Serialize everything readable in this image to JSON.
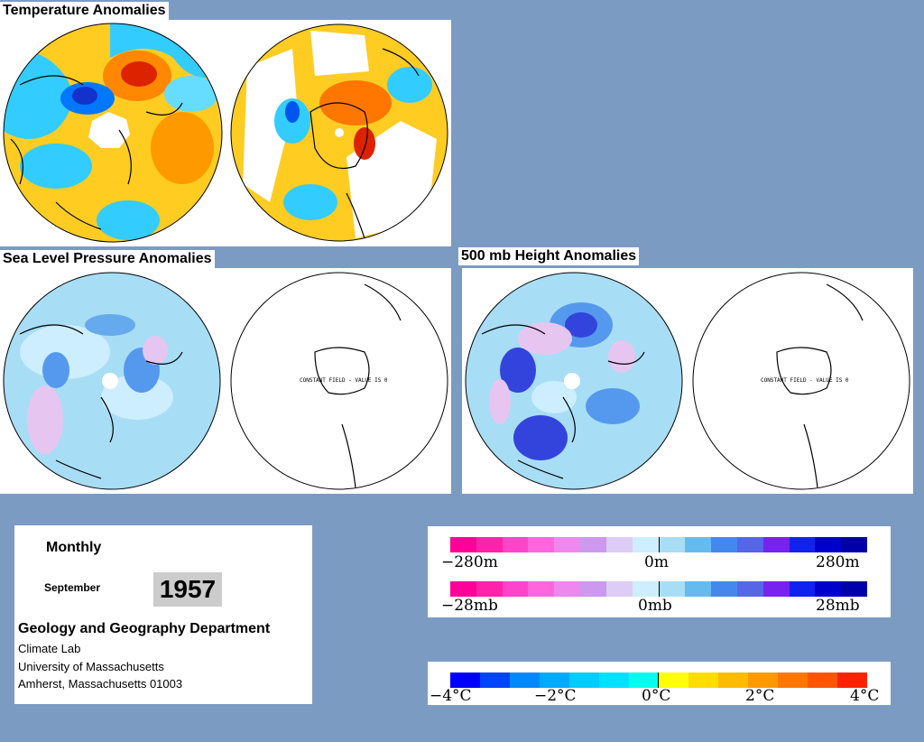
{
  "sections": {
    "temperature": {
      "title": "Temperature Anomalies"
    },
    "slp": {
      "title": "Sea Level Pressure Anomalies",
      "south_note": "CONSTANT FIELD - VALUE IS 0"
    },
    "height500": {
      "title": "500 mb Height Anomalies",
      "south_note": "CONSTANT FIELD - VALUE IS 0"
    }
  },
  "info": {
    "period": "Monthly",
    "month": "September",
    "year": "1957",
    "department": "Geology and Geography Department",
    "lab": "Climate Lab",
    "university": "University of Massachusetts",
    "address": "Amherst, Massachusetts 01003"
  },
  "legends": {
    "height": {
      "labels": [
        "−280m",
        "0m",
        "280m"
      ],
      "colors": [
        "#ff0099",
        "#ff22aa",
        "#ff44cc",
        "#ff66dd",
        "#ee88ee",
        "#cc99ee",
        "#ddccf5",
        "#cceeff",
        "#a8ddf6",
        "#66bbee",
        "#4488ee",
        "#5566e6",
        "#7722ee",
        "#1122ee",
        "#0000cc",
        "#0000aa"
      ]
    },
    "pressure": {
      "labels": [
        "−28mb",
        "0mb",
        "28mb"
      ],
      "colors": [
        "#ff0099",
        "#ff22aa",
        "#ff44cc",
        "#ff66dd",
        "#ee88ee",
        "#cc99ee",
        "#ddccf5",
        "#cceeff",
        "#a8ddf6",
        "#66bbee",
        "#4488ee",
        "#5566e6",
        "#7722ee",
        "#1122ee",
        "#0000cc",
        "#0000aa"
      ]
    },
    "temperature": {
      "labels": [
        "−4°C",
        "−2°C",
        "0°C",
        "2°C",
        "4°C"
      ],
      "colors": [
        "#0000ff",
        "#0044ff",
        "#0088ff",
        "#00aaff",
        "#00ccff",
        "#00e0ff",
        "#00ffee",
        "#ffff00",
        "#ffdd00",
        "#ffbb00",
        "#ff9900",
        "#ff7700",
        "#ff5500",
        "#ff2200"
      ]
    }
  }
}
